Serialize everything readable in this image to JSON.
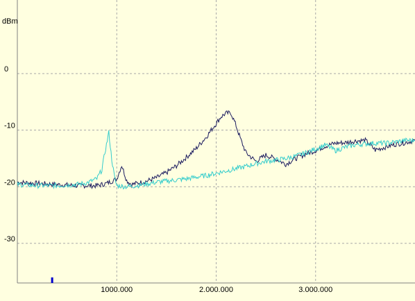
{
  "chart_data": {
    "type": "line",
    "ylabel": "dBm",
    "xlabel": "",
    "xlim": [
      0,
      4000000
    ],
    "ylim": [
      -37,
      13
    ],
    "grid": true,
    "x_ticks": [
      {
        "value": 1000000,
        "label": "1000.000"
      },
      {
        "value": 2000000,
        "label": "2.000.000"
      },
      {
        "value": 3000000,
        "label": "3.000.000"
      }
    ],
    "y_ticks": [
      {
        "value": 0,
        "label": "0"
      },
      {
        "value": -10,
        "label": "-10"
      },
      {
        "value": -20,
        "label": "-20"
      },
      {
        "value": -30,
        "label": "-30"
      }
    ],
    "marker": {
      "x": 350000
    },
    "series": [
      {
        "color": "#1a1a5e",
        "x": [
          0,
          200000,
          400000,
          600000,
          800000,
          900000,
          1000000,
          1050000,
          1100000,
          1150000,
          1200000,
          1300000,
          1400000,
          1500000,
          1600000,
          1700000,
          1800000,
          1900000,
          2000000,
          2050000,
          2100000,
          2150000,
          2200000,
          2250000,
          2300000,
          2400000,
          2500000,
          2600000,
          2700000,
          2800000,
          2900000,
          3000000,
          3100000,
          3200000,
          3300000,
          3400000,
          3500000,
          3600000,
          3700000,
          3800000,
          3900000,
          4000000
        ],
        "y": [
          -19.2,
          -19.4,
          -19.6,
          -19.8,
          -19.8,
          -19.4,
          -18.6,
          -16.2,
          -18.9,
          -19.6,
          -19.4,
          -19.0,
          -18.4,
          -17.5,
          -16.3,
          -14.8,
          -13.2,
          -11.2,
          -8.8,
          -7.6,
          -7.0,
          -7.0,
          -9.2,
          -11.8,
          -14.0,
          -15.5,
          -14.4,
          -15.1,
          -16.0,
          -15.0,
          -14.2,
          -13.6,
          -12.8,
          -12.3,
          -12.2,
          -11.9,
          -11.8,
          -13.5,
          -13.0,
          -12.5,
          -12.2,
          -11.8
        ]
      },
      {
        "color": "#33cccc",
        "x": [
          0,
          200000,
          400000,
          600000,
          700000,
          800000,
          850000,
          880000,
          920000,
          950000,
          980000,
          1000000,
          1100000,
          1200000,
          1300000,
          1400000,
          1500000,
          1600000,
          1700000,
          1800000,
          1900000,
          2000000,
          2100000,
          2200000,
          2300000,
          2400000,
          2500000,
          2600000,
          2700000,
          2800000,
          2900000,
          3000000,
          3100000,
          3200000,
          3300000,
          3400000,
          3500000,
          3600000,
          3700000,
          3800000,
          3900000,
          4000000
        ],
        "y": [
          -19.6,
          -19.8,
          -19.8,
          -19.6,
          -19.3,
          -18.6,
          -17.0,
          -14.0,
          -10.4,
          -15.2,
          -18.6,
          -19.8,
          -20.0,
          -19.8,
          -19.5,
          -19.2,
          -19.0,
          -18.8,
          -18.6,
          -18.3,
          -18.0,
          -17.6,
          -17.2,
          -16.8,
          -16.4,
          -15.9,
          -15.5,
          -15.3,
          -15.0,
          -14.6,
          -14.0,
          -13.3,
          -12.6,
          -13.6,
          -13.0,
          -12.6,
          -12.4,
          -12.3,
          -12.3,
          -12.1,
          -11.8,
          -11.8
        ]
      }
    ]
  }
}
